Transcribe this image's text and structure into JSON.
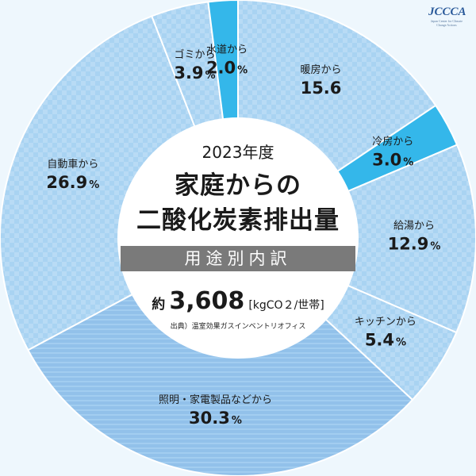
{
  "logo": {
    "text": "JCCCA",
    "sub": "Japan Center for Climate Change Actions"
  },
  "center": {
    "year": "2023年度",
    "title_line1": "家庭からの",
    "title_line2": "二酸化炭素排出量",
    "banner": "用途別内訳",
    "total_prefix": "約",
    "total_value": "3,608",
    "total_unit": "[kgCO２/世帯]",
    "source": "出典）温室効果ガスインベントリオフィス"
  },
  "colors": {
    "light": "#a9d3f2",
    "medium": "#92c1ea",
    "accent": "#34b7ea",
    "white": "#ffffff"
  },
  "chart_data": {
    "type": "pie",
    "title": "家庭からの二酸化炭素排出量",
    "subtitle": "用途別内訳",
    "unit": "%",
    "slices": [
      {
        "label": "暖房から",
        "value": 15.6,
        "display": "15.6",
        "pct_sign": "",
        "style": "light"
      },
      {
        "label": "冷房から",
        "value": 3.0,
        "display": "3.0",
        "pct_sign": "%",
        "style": "accent"
      },
      {
        "label": "給湯から",
        "value": 12.9,
        "display": "12.9",
        "pct_sign": "%",
        "style": "light"
      },
      {
        "label": "キッチンから",
        "value": 5.4,
        "display": "5.4",
        "pct_sign": "%",
        "style": "light"
      },
      {
        "label": "照明・家電製品などから",
        "value": 30.3,
        "display": "30.3",
        "pct_sign": "%",
        "style": "medium"
      },
      {
        "label": "自動車から",
        "value": 26.9,
        "display": "26.9",
        "pct_sign": "%",
        "style": "light"
      },
      {
        "label": "ゴミから",
        "value": 3.9,
        "display": "3.9",
        "pct_sign": "%",
        "style": "light"
      },
      {
        "label": "水道から",
        "value": 2.0,
        "display": "2.0",
        "pct_sign": "%",
        "style": "accent"
      }
    ]
  }
}
